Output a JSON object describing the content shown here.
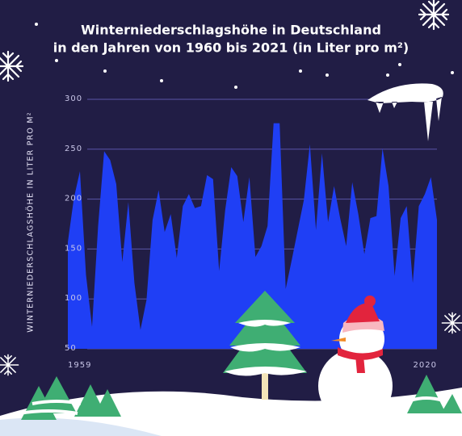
{
  "chart_data": {
    "type": "area",
    "title": [
      "Winterniederschlagshöhe in Deutschland",
      "in den Jahren von 1960 bis 2021 (in Liter pro m²)"
    ],
    "y_label": "WINTERNIEDERSCHLAGSHÖHE IN LITER PRO M²",
    "x": [
      1959,
      1960,
      1961,
      1962,
      1963,
      1964,
      1965,
      1966,
      1967,
      1968,
      1969,
      1970,
      1971,
      1972,
      1973,
      1974,
      1975,
      1976,
      1977,
      1978,
      1979,
      1980,
      1981,
      1982,
      1983,
      1984,
      1985,
      1986,
      1987,
      1988,
      1989,
      1990,
      1991,
      1992,
      1993,
      1994,
      1995,
      1996,
      1997,
      1998,
      1999,
      2000,
      2001,
      2002,
      2003,
      2004,
      2005,
      2006,
      2007,
      2008,
      2009,
      2010,
      2011,
      2012,
      2013,
      2014,
      2015,
      2016,
      2017,
      2018,
      2019,
      2020
    ],
    "values": [
      157,
      201,
      228,
      124,
      72,
      173,
      248,
      239,
      215,
      137,
      197,
      116,
      69,
      99,
      179,
      209,
      167,
      185,
      141,
      193,
      205,
      191,
      193,
      224,
      220,
      128,
      189,
      232,
      223,
      177,
      222,
      142,
      153,
      173,
      276,
      276,
      110,
      139,
      169,
      199,
      255,
      169,
      246,
      177,
      213,
      181,
      153,
      217,
      185,
      145,
      181,
      183,
      251,
      213,
      123,
      181,
      193,
      116,
      193,
      205,
      222,
      179
    ],
    "color": "#1f3ff5",
    "xlim": [
      1959,
      2020
    ],
    "xticks": [
      1959,
      2020
    ],
    "ylim": [
      50,
      300
    ],
    "yticks": [
      50,
      100,
      150,
      200,
      250,
      300
    ],
    "grid": true
  }
}
